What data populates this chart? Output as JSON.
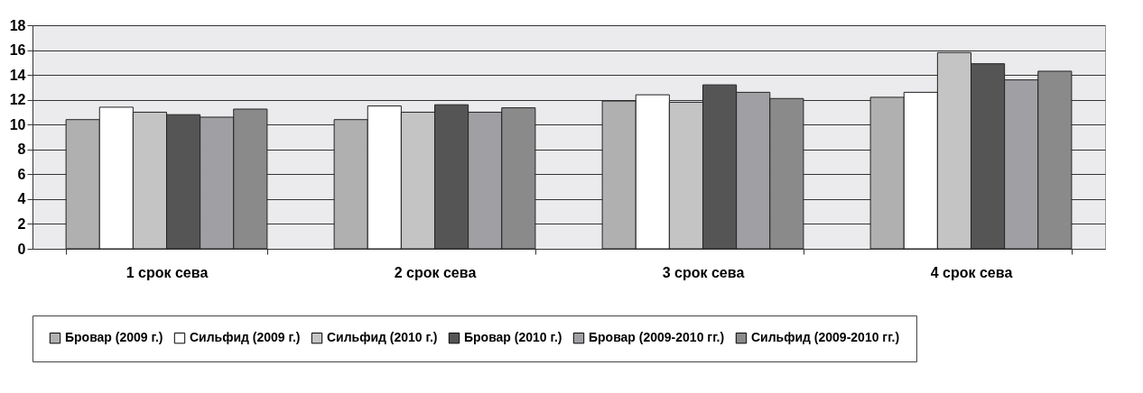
{
  "chart_data": {
    "type": "bar",
    "categories": [
      "1 срок сева",
      "2 срок сева",
      "3 срок сева",
      "4 срок сева"
    ],
    "series": [
      {
        "name": "Бровар (2009 г.)",
        "color": "#b0b0b0",
        "values": [
          10.4,
          10.4,
          11.9,
          12.2
        ]
      },
      {
        "name": "Сильфид (2009 г.)",
        "color": "#ffffff",
        "values": [
          11.4,
          11.5,
          12.4,
          12.6
        ]
      },
      {
        "name": "Сильфид (2010 г.)",
        "color": "#c4c4c4",
        "values": [
          11.0,
          11.0,
          11.8,
          15.8
        ]
      },
      {
        "name": "Бровар (2010 г.)",
        "color": "#555555",
        "values": [
          10.8,
          11.6,
          13.2,
          14.9
        ]
      },
      {
        "name": "Бровар (2009-2010 гг.)",
        "color": "#a0a0a4",
        "values": [
          10.6,
          11.0,
          12.6,
          13.6
        ]
      },
      {
        "name": "Сильфид (2009-2010 гг.)",
        "color": "#8a8a8a",
        "values": [
          11.25,
          11.35,
          12.1,
          14.3
        ]
      }
    ],
    "ylim": [
      0,
      18
    ],
    "yticks": [
      0,
      2,
      4,
      6,
      8,
      10,
      12,
      14,
      16,
      18
    ],
    "grid": "y",
    "legend": "bottom"
  }
}
